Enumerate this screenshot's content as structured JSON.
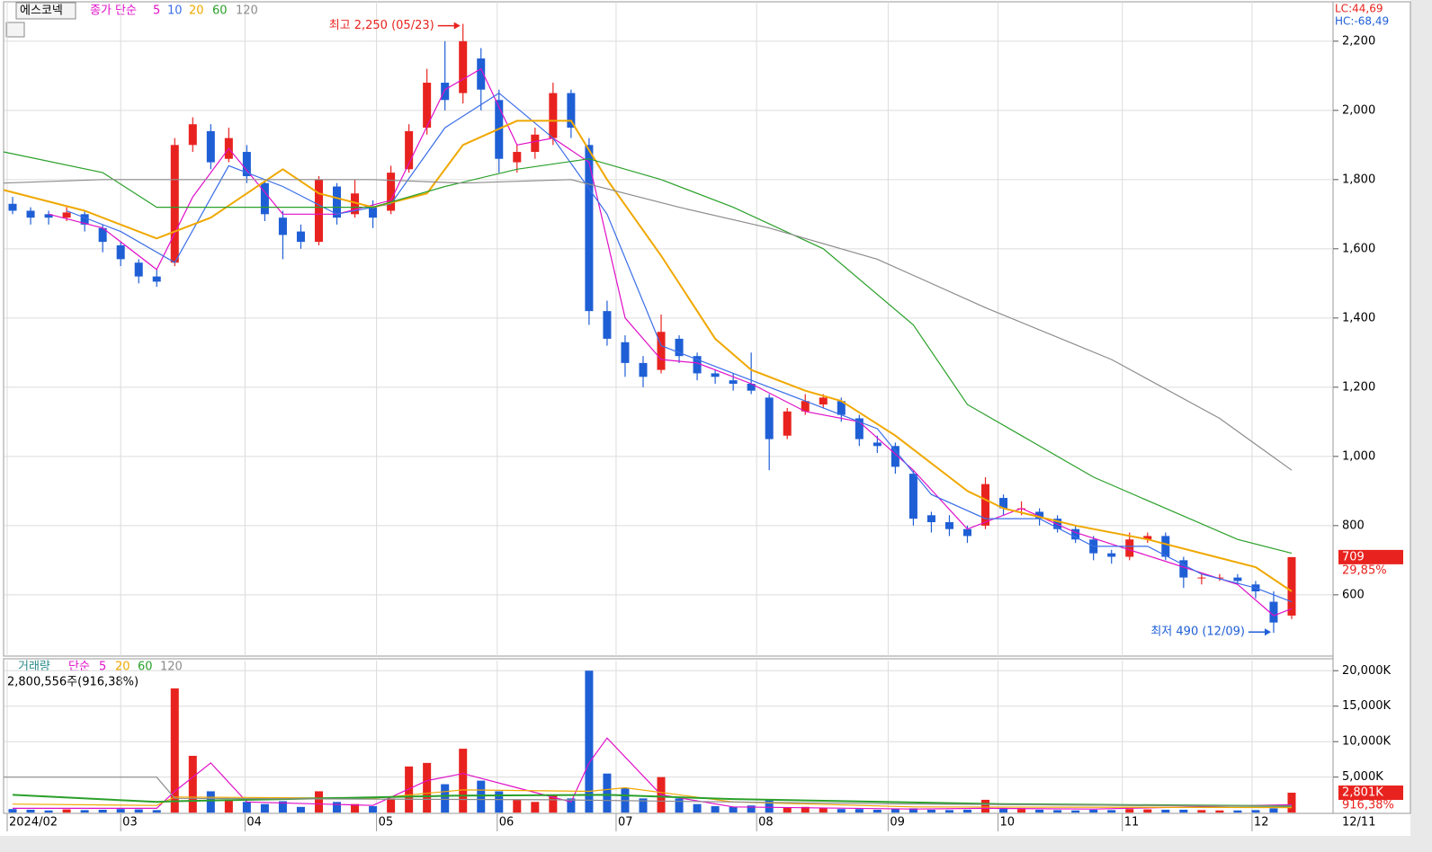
{
  "chart_data": [
    {
      "type": "candlestick",
      "name": "에스코넥",
      "legend_label": "종가 단순",
      "lc": "LC:44,69",
      "hc": "HC:-68,49",
      "xlim": [
        -0.5,
        71.5
      ],
      "xticks": [
        {
          "value": -0.3,
          "label": "2024/02"
        },
        {
          "value": 6,
          "label": "03"
        },
        {
          "value": 12.9,
          "label": "04"
        },
        {
          "value": 20.2,
          "label": "05"
        },
        {
          "value": 26.9,
          "label": "06"
        },
        {
          "value": 33.5,
          "label": "07"
        },
        {
          "value": 41.3,
          "label": "08"
        },
        {
          "value": 48.6,
          "label": "09"
        },
        {
          "value": 54.7,
          "label": "10"
        },
        {
          "value": 61.6,
          "label": "11"
        },
        {
          "value": 68.8,
          "label": "12"
        }
      ],
      "end_label": "12/11",
      "ylim": [
        423,
        2319
      ],
      "yticks": [
        600,
        800,
        {
          "value": 1000,
          "label": "1,000"
        },
        {
          "value": 1200,
          "label": "1,200"
        },
        {
          "value": 1400,
          "label": "1,400"
        },
        {
          "value": 1600,
          "label": "1,600"
        },
        {
          "value": 1800,
          "label": "1,800"
        },
        {
          "value": 2000,
          "label": "2,000"
        },
        {
          "value": 2200,
          "label": "2,200"
        }
      ],
      "grid": true,
      "up_color": "#e8231f",
      "down_color": "#1f5fd6",
      "open": [
        1730,
        1710,
        1700,
        1690,
        1700,
        1660,
        1610,
        1560,
        1520,
        1560,
        1900,
        1940,
        1860,
        1880,
        1790,
        1690,
        1650,
        1620,
        1780,
        1700,
        1720,
        1710,
        1830,
        1950,
        2080,
        2050,
        2150,
        2030,
        1850,
        1880,
        1920,
        2050,
        1900,
        1420,
        1330,
        1270,
        1250,
        1340,
        1290,
        1240,
        1220,
        1210,
        1170,
        1060,
        1130,
        1150,
        1160,
        1110,
        1040,
        1030,
        950,
        830,
        810,
        790,
        800,
        880,
        850,
        840,
        820,
        790,
        760,
        720,
        710,
        760,
        770,
        700,
        650,
        650,
        650,
        630,
        580,
        540
      ],
      "high": [
        1750,
        1720,
        1710,
        1720,
        1710,
        1670,
        1620,
        1570,
        1540,
        1920,
        1980,
        1960,
        1950,
        1900,
        1800,
        1710,
        1670,
        1810,
        1790,
        1800,
        1740,
        1840,
        1960,
        2120,
        2200,
        2250,
        2180,
        2060,
        1900,
        1950,
        2080,
        2060,
        1920,
        1450,
        1350,
        1290,
        1410,
        1350,
        1300,
        1250,
        1240,
        1300,
        1180,
        1140,
        1180,
        1180,
        1170,
        1120,
        1060,
        1040,
        960,
        840,
        830,
        800,
        940,
        890,
        870,
        850,
        830,
        800,
        770,
        730,
        780,
        780,
        780,
        710,
        660,
        660,
        660,
        640,
        610,
        709
      ],
      "low": [
        1700,
        1670,
        1670,
        1680,
        1650,
        1590,
        1550,
        1500,
        1490,
        1550,
        1880,
        1830,
        1850,
        1790,
        1680,
        1570,
        1600,
        1610,
        1670,
        1690,
        1660,
        1700,
        1820,
        1930,
        2000,
        2020,
        2000,
        1820,
        1820,
        1860,
        1900,
        1920,
        1380,
        1320,
        1230,
        1200,
        1240,
        1270,
        1220,
        1210,
        1190,
        1180,
        960,
        1050,
        1120,
        1140,
        1100,
        1030,
        1010,
        950,
        800,
        780,
        770,
        750,
        790,
        830,
        830,
        800,
        780,
        750,
        700,
        690,
        700,
        750,
        700,
        620,
        630,
        640,
        630,
        590,
        490,
        530
      ],
      "close": [
        1710,
        1690,
        1690,
        1705,
        1670,
        1620,
        1570,
        1520,
        1505,
        1900,
        1960,
        1850,
        1920,
        1810,
        1700,
        1640,
        1620,
        1800,
        1690,
        1760,
        1690,
        1820,
        1940,
        2080,
        2030,
        2200,
        2060,
        1860,
        1880,
        1930,
        2050,
        1950,
        1420,
        1340,
        1270,
        1230,
        1360,
        1290,
        1240,
        1230,
        1210,
        1190,
        1050,
        1130,
        1160,
        1170,
        1120,
        1050,
        1030,
        970,
        820,
        810,
        790,
        770,
        920,
        850,
        850,
        820,
        790,
        760,
        720,
        710,
        760,
        770,
        710,
        650,
        650,
        650,
        640,
        610,
        520,
        709
      ],
      "series": [
        {
          "name": "5",
          "color": "#e010c8",
          "x": [
            2,
            5,
            8,
            10,
            12,
            15,
            18,
            21,
            24,
            26,
            28,
            30,
            32,
            34,
            36,
            38,
            41,
            44,
            47,
            50,
            53,
            56,
            59,
            62,
            65,
            68,
            70,
            71
          ],
          "values": [
            1700,
            1660,
            1540,
            1750,
            1890,
            1700,
            1700,
            1740,
            2060,
            2120,
            1900,
            1920,
            1850,
            1400,
            1280,
            1270,
            1210,
            1130,
            1100,
            960,
            790,
            850,
            780,
            730,
            680,
            630,
            540,
            560
          ]
        },
        {
          "name": "10",
          "color": "#3a6ee8",
          "x": [
            3,
            6,
            9,
            12,
            15,
            18,
            21,
            24,
            27,
            30,
            33,
            36,
            39,
            42,
            45,
            48,
            51,
            54,
            57,
            60,
            63,
            66,
            69,
            71
          ],
          "values": [
            1710,
            1650,
            1560,
            1840,
            1780,
            1700,
            1730,
            1950,
            2050,
            1920,
            1700,
            1320,
            1260,
            1200,
            1140,
            1080,
            890,
            820,
            820,
            740,
            740,
            660,
            620,
            580
          ]
        },
        {
          "name": "20",
          "color": "#f0a800",
          "x": [
            -0.5,
            4,
            8,
            11,
            15,
            17,
            20,
            23,
            25,
            28,
            31,
            33,
            36,
            39,
            41,
            44,
            46,
            49,
            53,
            55,
            59,
            63,
            66,
            69,
            71
          ],
          "values": [
            1770,
            1710,
            1630,
            1690,
            1830,
            1760,
            1720,
            1760,
            1900,
            1970,
            1970,
            1800,
            1580,
            1340,
            1250,
            1190,
            1160,
            1060,
            900,
            850,
            800,
            760,
            720,
            680,
            610
          ]
        },
        {
          "name": "60",
          "color": "#2aa02a",
          "x": [
            -0.5,
            5,
            8,
            12,
            20,
            24,
            28,
            32,
            36,
            40,
            45,
            50,
            53,
            56,
            60,
            64,
            68,
            71
          ],
          "values": [
            1880,
            1820,
            1720,
            1720,
            1720,
            1780,
            1830,
            1860,
            1800,
            1720,
            1600,
            1380,
            1150,
            1060,
            940,
            850,
            760,
            720
          ]
        },
        {
          "name": "120",
          "color": "#8c8c8c",
          "x": [
            -0.5,
            5,
            10,
            15,
            20,
            25,
            31,
            37,
            42,
            48,
            54,
            61,
            67,
            71
          ],
          "values": [
            1790,
            1800,
            1800,
            1800,
            1800,
            1790,
            1800,
            1720,
            1660,
            1570,
            1430,
            1280,
            1110,
            960
          ]
        }
      ],
      "annotations": [
        {
          "text": "최고 2,250 (05/23)",
          "value": 2250,
          "x": 25
        },
        {
          "text": "최저 490 (12/09)",
          "value": 490,
          "x": 70
        }
      ],
      "last_price": 709,
      "last_change": "29,85%"
    },
    {
      "type": "bar",
      "name": "거래량",
      "legend_label": "단순",
      "info": "2,800,556주(916,38%)",
      "xlim": [
        -0.5,
        71.5
      ],
      "ylim": [
        -110,
        21680
      ],
      "yticks": [
        {
          "value": 5000,
          "label": "5,000K"
        },
        {
          "value": 10000,
          "label": "10,000K"
        },
        {
          "value": 15000,
          "label": "15,000K"
        },
        {
          "value": 20000,
          "label": "20,000K"
        }
      ],
      "grid": true,
      "values": [
        500,
        400,
        300,
        450,
        350,
        400,
        500,
        450,
        350,
        17500,
        8000,
        3000,
        1800,
        1500,
        1200,
        1600,
        800,
        3000,
        1500,
        1200,
        900,
        2000,
        6500,
        7000,
        4000,
        9000,
        4500,
        3000,
        1800,
        1500,
        2500,
        2000,
        20000,
        5500,
        3500,
        2000,
        5000,
        2000,
        1200,
        900,
        800,
        1000,
        1800,
        700,
        800,
        600,
        500,
        500,
        400,
        500,
        600,
        400,
        350,
        400,
        1800,
        600,
        500,
        400,
        350,
        300,
        400,
        350,
        500,
        450,
        400,
        400,
        350,
        300,
        300,
        350,
        600,
        2801
      ],
      "series": [
        {
          "name": "5",
          "color": "#e010c8",
          "x": [
            0,
            8,
            9,
            11,
            13,
            20,
            23,
            25,
            28,
            31,
            32,
            33,
            36,
            40,
            50,
            54,
            60,
            71
          ],
          "values": [
            600,
            600,
            3000,
            7000,
            1500,
            1000,
            4500,
            5500,
            3500,
            1500,
            7000,
            10500,
            2500,
            800,
            500,
            600,
            500,
            1100
          ]
        },
        {
          "name": "20",
          "color": "#f0a800",
          "x": [
            0,
            8,
            9,
            20,
            25,
            32,
            34,
            40,
            50,
            71
          ],
          "values": [
            1200,
            1000,
            2200,
            2000,
            3200,
            3000,
            3500,
            1500,
            800,
            700
          ]
        },
        {
          "name": "60",
          "color": "#2aa02a",
          "x": [
            0,
            8,
            9,
            25,
            33,
            40,
            55,
            71
          ],
          "values": [
            2500,
            1500,
            1600,
            2400,
            2500,
            1900,
            1200,
            900
          ]
        },
        {
          "name": "120",
          "color": "#8c8c8c",
          "x": [
            -0.5,
            8,
            9,
            30,
            50,
            71
          ],
          "values": [
            5000,
            5000,
            2000,
            1800,
            1200,
            900
          ]
        }
      ],
      "last_label": {
        "value": 2801,
        "label": "2,801K"
      },
      "last_ratio": "916,38%"
    }
  ]
}
